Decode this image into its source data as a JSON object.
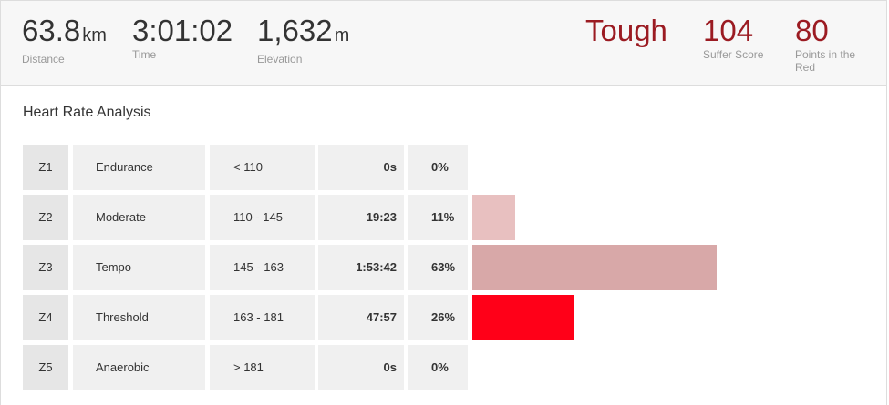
{
  "summary": {
    "distance": {
      "value": "63.8",
      "unit": "km",
      "label": "Distance"
    },
    "time": {
      "value": "3:01:02",
      "label": "Time"
    },
    "elevation": {
      "value": "1,632",
      "unit": "m",
      "label": "Elevation"
    },
    "intensity": {
      "value": "Tough"
    },
    "suffer_score": {
      "value": "104",
      "label": "Suffer Score"
    },
    "points_in_red": {
      "value": "80",
      "label": "Points in the Red"
    }
  },
  "heart_rate": {
    "title": "Heart Rate Analysis",
    "zones": [
      {
        "id": "Z1",
        "name": "Endurance",
        "range": "< 110",
        "time": "0s",
        "percent": "0%",
        "fraction": 0.0,
        "color": "#e8c0c0"
      },
      {
        "id": "Z2",
        "name": "Moderate",
        "range": "110 - 145",
        "time": "19:23",
        "percent": "11%",
        "fraction": 0.11,
        "color": "#e8c0c0"
      },
      {
        "id": "Z3",
        "name": "Tempo",
        "range": "145 - 163",
        "time": "1:53:42",
        "percent": "63%",
        "fraction": 0.63,
        "color": "#d8a8a8"
      },
      {
        "id": "Z4",
        "name": "Threshold",
        "range": "163 - 181",
        "time": "47:57",
        "percent": "26%",
        "fraction": 0.26,
        "color": "#ff0018"
      },
      {
        "id": "Z5",
        "name": "Anaerobic",
        "range": "> 181",
        "time": "0s",
        "percent": "0%",
        "fraction": 0.0,
        "color": "#e8c0c0"
      }
    ]
  }
}
